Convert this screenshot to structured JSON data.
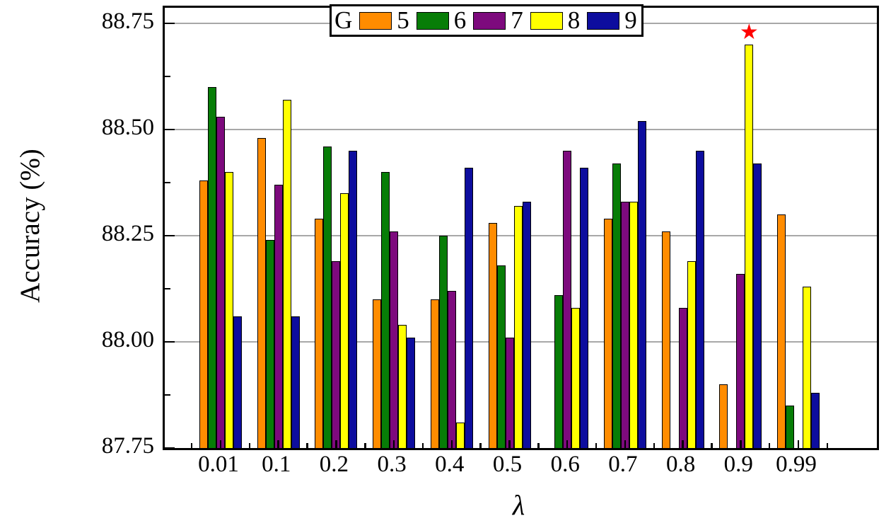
{
  "figure": {
    "y_axis_title": "Accuracy (%)",
    "x_axis_title": "λ",
    "legend_title": "G"
  },
  "chart_data": {
    "type": "bar",
    "title": "",
    "xlabel": "λ",
    "ylabel": "Accuracy (%)",
    "categories": [
      "0.01",
      "0.1",
      "0.2",
      "0.3",
      "0.4",
      "0.5",
      "0.6",
      "0.7",
      "0.8",
      "0.9",
      "0.99"
    ],
    "series": [
      {
        "name": "5",
        "color": "#FF8C00",
        "values": [
          88.38,
          88.48,
          88.29,
          88.1,
          88.1,
          88.28,
          null,
          88.29,
          88.26,
          87.9,
          88.3
        ]
      },
      {
        "name": "6",
        "color": "#077D07",
        "values": [
          88.6,
          88.24,
          88.46,
          88.4,
          88.25,
          88.18,
          88.11,
          88.42,
          null,
          null,
          87.85
        ]
      },
      {
        "name": "7",
        "color": "#7D0A7D",
        "values": [
          88.53,
          88.37,
          88.19,
          88.26,
          88.12,
          88.01,
          88.45,
          88.33,
          88.08,
          88.16,
          null
        ]
      },
      {
        "name": "8",
        "color": "#FFFF00",
        "values": [
          88.4,
          88.57,
          88.35,
          88.04,
          87.81,
          88.32,
          88.08,
          88.33,
          88.19,
          88.7,
          88.13
        ]
      },
      {
        "name": "9",
        "color": "#0D0D9E",
        "values": [
          88.06,
          88.06,
          88.45,
          88.01,
          88.41,
          88.33,
          88.41,
          88.52,
          88.45,
          88.42,
          87.88
        ]
      }
    ],
    "ylim": [
      87.75,
      88.787
    ],
    "yticks": [
      87.75,
      88.0,
      88.25,
      88.5,
      88.75
    ],
    "ytick_labels": [
      "87.75",
      "88.00",
      "88.25",
      "88.50",
      "88.75"
    ],
    "minor_ytick_interval": 0.125,
    "grid": "horizontal-major",
    "gridline_color": "#a8a8a8",
    "legend_position": "top",
    "legend_title": "G",
    "annotation": {
      "type": "star",
      "symbol": "★",
      "color": "#FF0000",
      "series": "8",
      "category": "0.9",
      "value": 88.7
    }
  }
}
